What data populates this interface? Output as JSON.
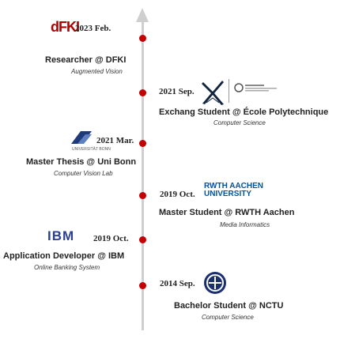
{
  "timeline": {
    "events": [
      {
        "id": "dfki",
        "date": "2023 Feb.",
        "title": "Researcher @ DFKI",
        "subtitle": "Augmented Vision",
        "logo_text": "dFKI"
      },
      {
        "id": "polytechnique",
        "date": "2021 Sep.",
        "title": "Exchang Student @ École Polytechnique",
        "subtitle": "Computer Science",
        "logo_text": "X"
      },
      {
        "id": "bonn",
        "date": "2021 Mar.",
        "title": "Master Thesis @ Uni Bonn",
        "subtitle": "Computer Vision Lab",
        "logo_text": "UNIVERSITÄT BONN"
      },
      {
        "id": "rwth",
        "date": "2019 Oct.",
        "title": "Master Student @ RWTH Aachen",
        "subtitle": "Media Informatics",
        "logo_text": "RWTH AACHEN UNIVERSITY"
      },
      {
        "id": "ibm",
        "date": "2019 Oct.",
        "title": "Application Developer @ IBM",
        "subtitle": "Online Banking System",
        "logo_text": "IBM"
      },
      {
        "id": "nctu",
        "date": "2014 Sep.",
        "title": "Bachelor Student @ NCTU",
        "subtitle": "Computer Science",
        "logo_text": ""
      }
    ]
  },
  "colors": {
    "dot": "#c40000",
    "axis": "#cfcfcf",
    "dfki": "#b00000",
    "ibm": "#2b3f8f",
    "rwth": "#00549f"
  }
}
